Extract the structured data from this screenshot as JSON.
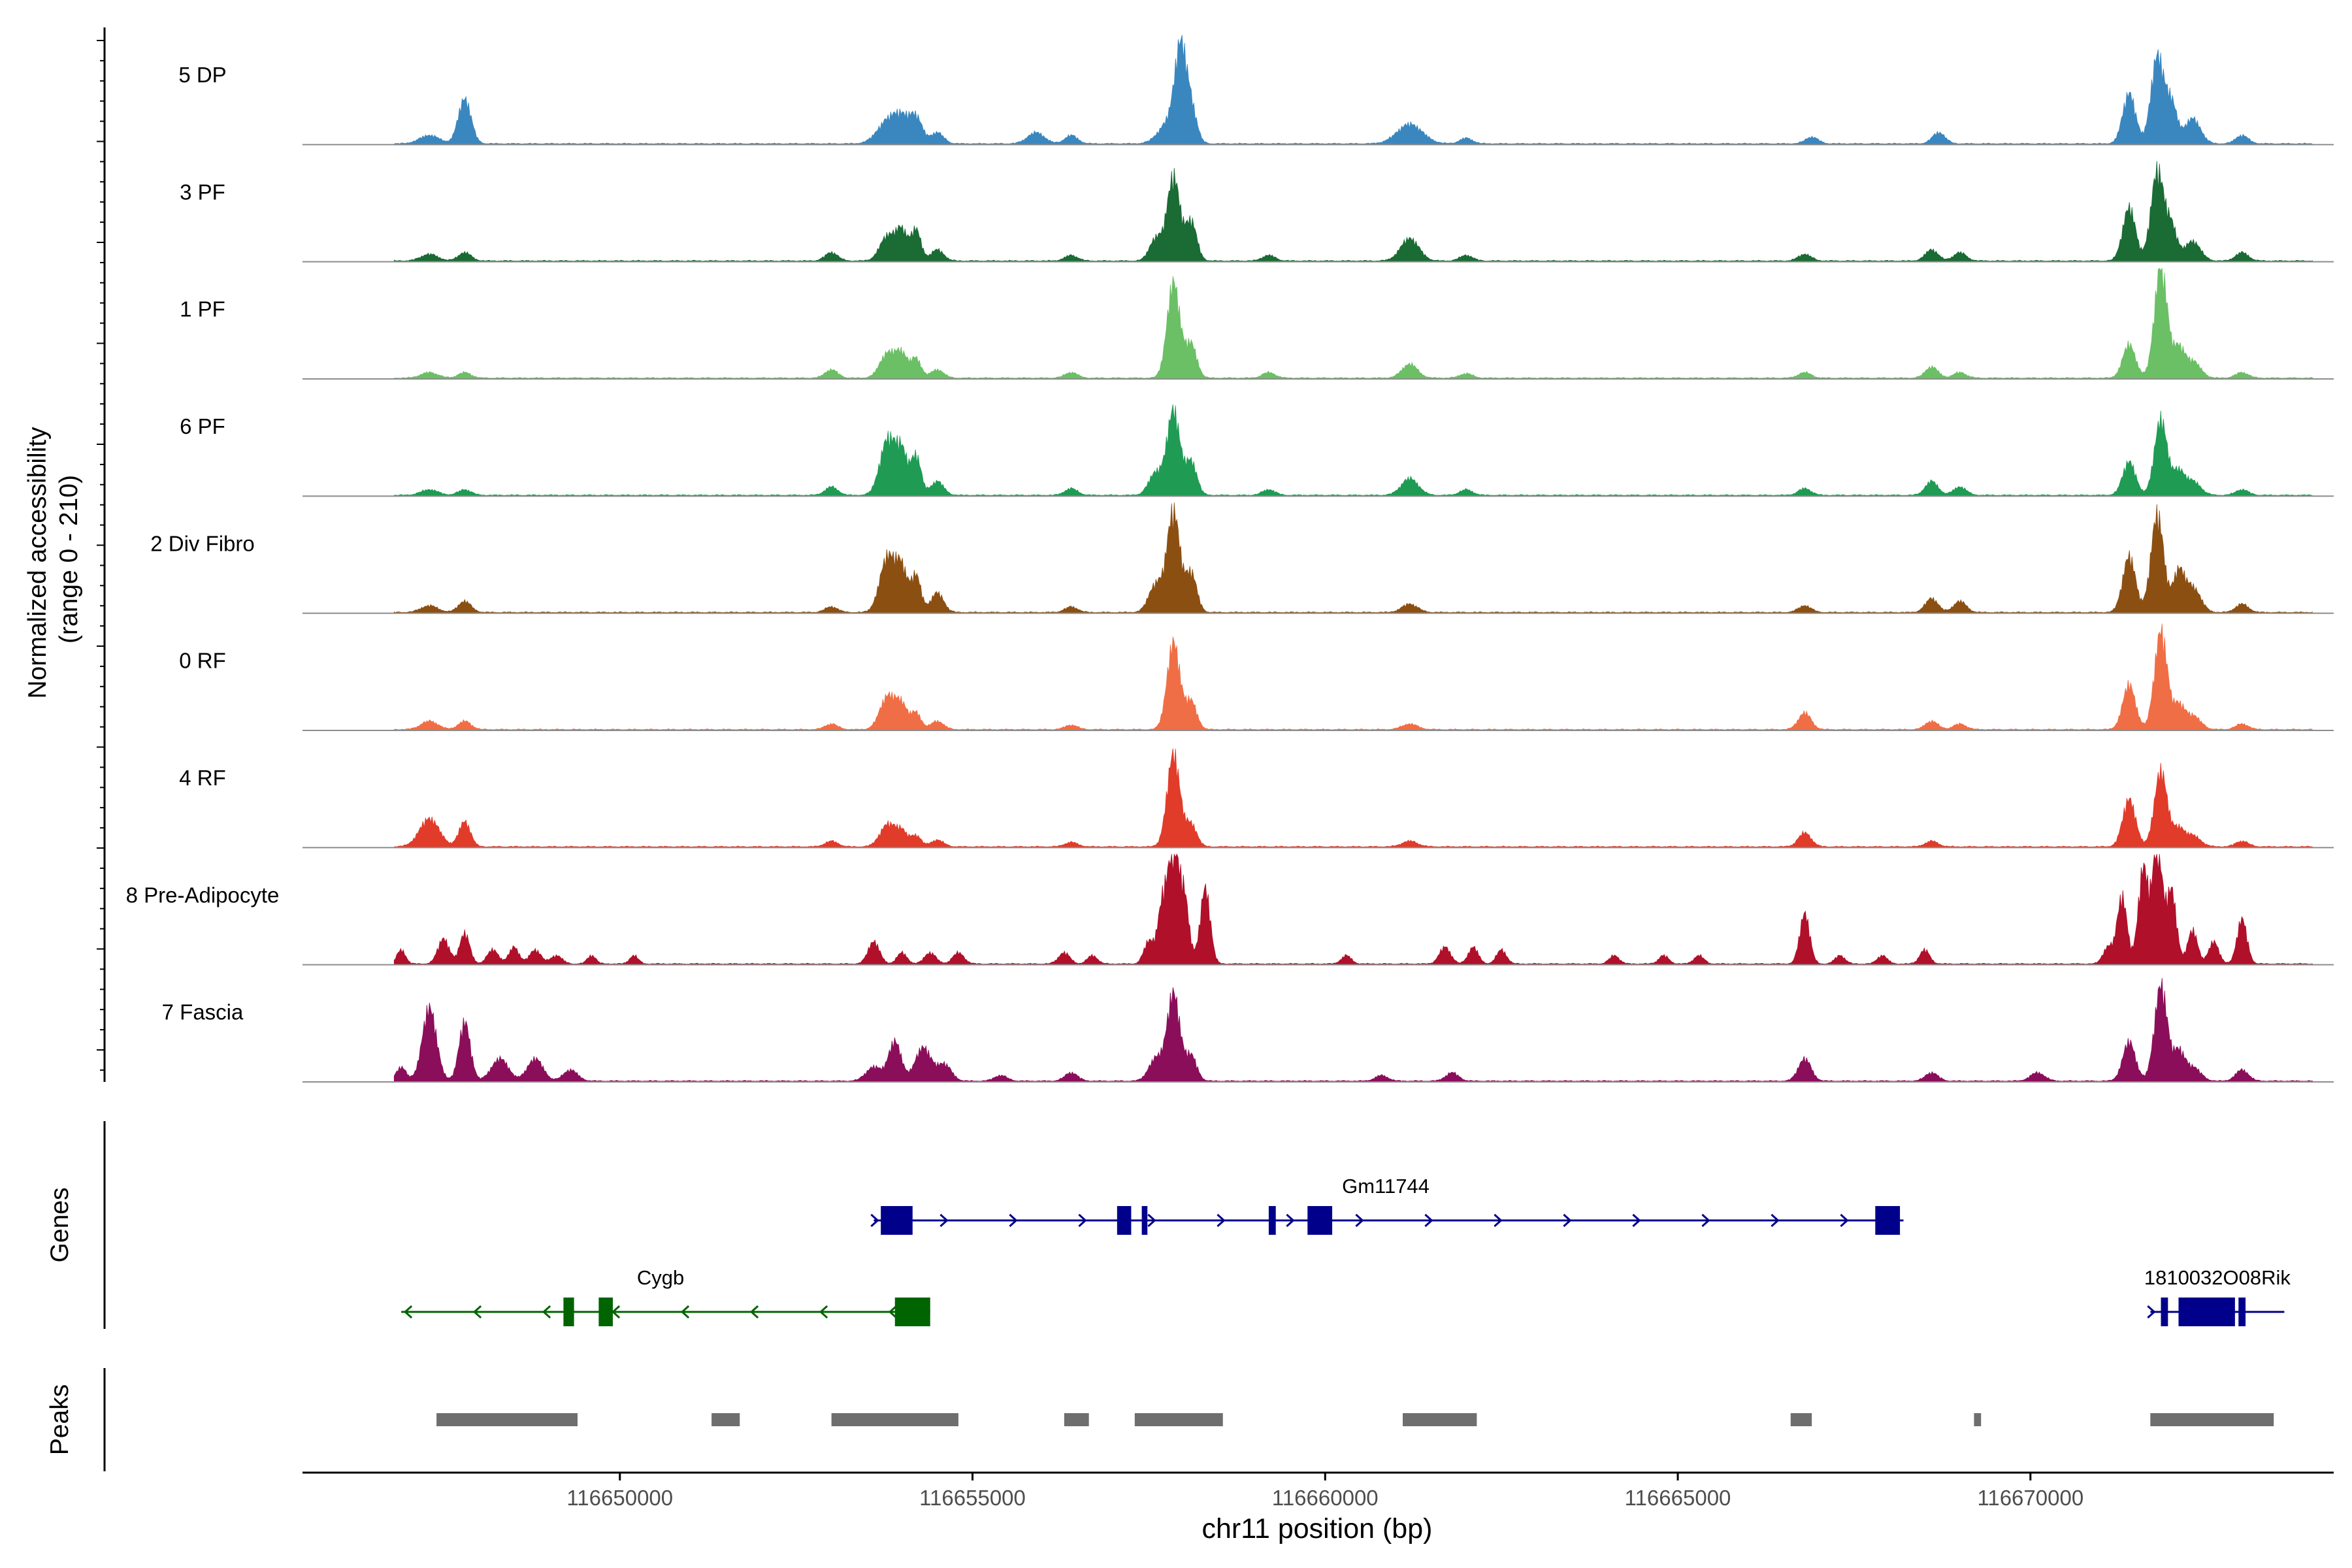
{
  "chart_data": {
    "type": "area",
    "title": "",
    "ylabel": "Normalized accessibility\n(range 0 - 210)",
    "ylabel_lines": [
      "Normalized accessibility",
      "(range 0 - 210)"
    ],
    "ylim": [
      0,
      210
    ],
    "xlabel": "chr11 position (bp)",
    "xlim": [
      116645500,
      116674300
    ],
    "x_ticks": [
      116650000,
      116655000,
      116660000,
      116665000,
      116670000
    ],
    "x_tick_labels": [
      "116650000",
      "116655000",
      "116660000",
      "116665000",
      "116670000"
    ],
    "coverage_region": [
      116646800,
      116674000
    ],
    "tracks": [
      {
        "name": "5 DP",
        "color": "#3a87c0",
        "peaks": [
          [
            116647300,
            15,
            140
          ],
          [
            116647800,
            80,
            90
          ],
          [
            116653800,
            40,
            150
          ],
          [
            116654000,
            35,
            110
          ],
          [
            116654200,
            45,
            90
          ],
          [
            116654500,
            20,
            90
          ],
          [
            116655900,
            20,
            120
          ],
          [
            116656400,
            15,
            90
          ],
          [
            116657800,
            40,
            150
          ],
          [
            116657950,
            150,
            80
          ],
          [
            116658100,
            60,
            80
          ],
          [
            116661200,
            35,
            180
          ],
          [
            116662000,
            10,
            90
          ],
          [
            116666900,
            12,
            90
          ],
          [
            116668700,
            20,
            90
          ],
          [
            116671400,
            90,
            90
          ],
          [
            116671800,
            155,
            90
          ],
          [
            116672000,
            70,
            80
          ],
          [
            116672300,
            45,
            110
          ],
          [
            116673000,
            15,
            90
          ]
        ]
      },
      {
        "name": "3 PF",
        "color": "#1a6b34",
        "peaks": [
          [
            116647300,
            12,
            120
          ],
          [
            116647800,
            15,
            90
          ],
          [
            116653000,
            15,
            90
          ],
          [
            116653800,
            45,
            110
          ],
          [
            116654000,
            50,
            80
          ],
          [
            116654200,
            55,
            70
          ],
          [
            116654500,
            20,
            90
          ],
          [
            116656400,
            10,
            90
          ],
          [
            116657600,
            40,
            90
          ],
          [
            116657850,
            150,
            90
          ],
          [
            116658100,
            70,
            80
          ],
          [
            116659200,
            10,
            90
          ],
          [
            116661200,
            40,
            130
          ],
          [
            116662000,
            10,
            90
          ],
          [
            116666800,
            12,
            90
          ],
          [
            116668600,
            20,
            90
          ],
          [
            116669000,
            15,
            90
          ],
          [
            116671400,
            95,
            90
          ],
          [
            116671800,
            160,
            90
          ],
          [
            116672000,
            60,
            80
          ],
          [
            116672300,
            35,
            110
          ],
          [
            116673000,
            15,
            90
          ]
        ]
      },
      {
        "name": "1 PF",
        "color": "#6bbf65",
        "peaks": [
          [
            116647300,
            10,
            120
          ],
          [
            116647800,
            10,
            90
          ],
          [
            116653000,
            15,
            90
          ],
          [
            116653800,
            45,
            110
          ],
          [
            116654000,
            40,
            80
          ],
          [
            116654200,
            35,
            70
          ],
          [
            116654500,
            15,
            90
          ],
          [
            116656400,
            10,
            90
          ],
          [
            116657850,
            170,
            90
          ],
          [
            116658100,
            60,
            80
          ],
          [
            116659200,
            10,
            90
          ],
          [
            116661200,
            25,
            110
          ],
          [
            116662000,
            8,
            90
          ],
          [
            116666800,
            10,
            90
          ],
          [
            116668600,
            20,
            90
          ],
          [
            116669000,
            10,
            90
          ],
          [
            116671400,
            60,
            90
          ],
          [
            116671850,
            200,
            90
          ],
          [
            116672100,
            50,
            80
          ],
          [
            116672300,
            30,
            110
          ],
          [
            116673000,
            10,
            90
          ]
        ]
      },
      {
        "name": "6 PF",
        "color": "#1f9b54",
        "peaks": [
          [
            116647300,
            10,
            120
          ],
          [
            116647800,
            10,
            90
          ],
          [
            116653000,
            15,
            90
          ],
          [
            116653800,
            100,
            110
          ],
          [
            116654000,
            70,
            80
          ],
          [
            116654200,
            70,
            70
          ],
          [
            116654500,
            25,
            90
          ],
          [
            116656400,
            12,
            90
          ],
          [
            116657600,
            40,
            100
          ],
          [
            116657850,
            150,
            90
          ],
          [
            116658100,
            60,
            80
          ],
          [
            116659200,
            10,
            90
          ],
          [
            116661200,
            30,
            120
          ],
          [
            116662000,
            10,
            90
          ],
          [
            116666800,
            12,
            90
          ],
          [
            116668600,
            25,
            90
          ],
          [
            116669000,
            15,
            90
          ],
          [
            116671400,
            60,
            90
          ],
          [
            116671850,
            135,
            90
          ],
          [
            116672100,
            40,
            80
          ],
          [
            116672300,
            25,
            110
          ],
          [
            116673000,
            10,
            90
          ]
        ]
      },
      {
        "name": "2 Div Fibro",
        "color": "#8c4f12",
        "peaks": [
          [
            116647300,
            12,
            120
          ],
          [
            116647800,
            20,
            90
          ],
          [
            116653000,
            10,
            90
          ],
          [
            116653800,
            100,
            110
          ],
          [
            116654000,
            70,
            80
          ],
          [
            116654200,
            65,
            70
          ],
          [
            116654500,
            35,
            90
          ],
          [
            116656400,
            10,
            90
          ],
          [
            116657600,
            50,
            100
          ],
          [
            116657850,
            180,
            90
          ],
          [
            116658100,
            70,
            80
          ],
          [
            116661200,
            15,
            110
          ],
          [
            116666800,
            12,
            90
          ],
          [
            116668600,
            25,
            90
          ],
          [
            116669000,
            20,
            90
          ],
          [
            116671400,
            100,
            90
          ],
          [
            116671800,
            175,
            90
          ],
          [
            116672100,
            70,
            80
          ],
          [
            116672300,
            45,
            110
          ],
          [
            116673000,
            15,
            90
          ]
        ]
      },
      {
        "name": "0 RF",
        "color": "#f06e45",
        "peaks": [
          [
            116647300,
            15,
            120
          ],
          [
            116647800,
            15,
            90
          ],
          [
            116653000,
            10,
            90
          ],
          [
            116653800,
            60,
            110
          ],
          [
            116654000,
            40,
            80
          ],
          [
            116654200,
            30,
            70
          ],
          [
            116654500,
            15,
            90
          ],
          [
            116656400,
            8,
            90
          ],
          [
            116657850,
            155,
            90
          ],
          [
            116658100,
            50,
            80
          ],
          [
            116661200,
            10,
            110
          ],
          [
            116666800,
            30,
            90
          ],
          [
            116668600,
            15,
            90
          ],
          [
            116669000,
            10,
            90
          ],
          [
            116671400,
            80,
            90
          ],
          [
            116671850,
            175,
            90
          ],
          [
            116672100,
            40,
            80
          ],
          [
            116672300,
            25,
            110
          ],
          [
            116673000,
            10,
            90
          ]
        ]
      },
      {
        "name": "4 RF",
        "color": "#e13b2a",
        "peaks": [
          [
            116647300,
            50,
            140
          ],
          [
            116647800,
            45,
            80
          ],
          [
            116653000,
            10,
            90
          ],
          [
            116653800,
            40,
            110
          ],
          [
            116654000,
            25,
            80
          ],
          [
            116654200,
            20,
            70
          ],
          [
            116654500,
            12,
            90
          ],
          [
            116656400,
            8,
            90
          ],
          [
            116657850,
            165,
            90
          ],
          [
            116658100,
            40,
            80
          ],
          [
            116661200,
            10,
            110
          ],
          [
            116666800,
            25,
            90
          ],
          [
            116668600,
            10,
            90
          ],
          [
            116671400,
            85,
            90
          ],
          [
            116671850,
            135,
            90
          ],
          [
            116672100,
            30,
            80
          ],
          [
            116672300,
            20,
            110
          ],
          [
            116673000,
            10,
            90
          ]
        ]
      },
      {
        "name": "8 Pre-Adipocyte",
        "color": "#b0102a",
        "peaks": [
          [
            116646900,
            25,
            60
          ],
          [
            116647500,
            45,
            80
          ],
          [
            116647800,
            55,
            70
          ],
          [
            116648200,
            25,
            80
          ],
          [
            116648500,
            30,
            70
          ],
          [
            116648800,
            25,
            80
          ],
          [
            116649100,
            15,
            80
          ],
          [
            116649600,
            15,
            60
          ],
          [
            116650200,
            15,
            60
          ],
          [
            116653600,
            40,
            80
          ],
          [
            116654000,
            20,
            70
          ],
          [
            116654400,
            20,
            80
          ],
          [
            116654800,
            20,
            80
          ],
          [
            116656300,
            20,
            80
          ],
          [
            116656700,
            15,
            70
          ],
          [
            116657500,
            40,
            70
          ],
          [
            116657700,
            110,
            70
          ],
          [
            116657850,
            190,
            70
          ],
          [
            116658000,
            120,
            70
          ],
          [
            116658300,
            135,
            70
          ],
          [
            116660300,
            15,
            70
          ],
          [
            116661700,
            30,
            80
          ],
          [
            116662100,
            30,
            70
          ],
          [
            116662500,
            25,
            70
          ],
          [
            116664100,
            15,
            70
          ],
          [
            116664800,
            15,
            70
          ],
          [
            116665300,
            15,
            70
          ],
          [
            116666800,
            90,
            70
          ],
          [
            116667300,
            15,
            70
          ],
          [
            116667900,
            15,
            70
          ],
          [
            116668500,
            25,
            70
          ],
          [
            116671100,
            30,
            70
          ],
          [
            116671300,
            120,
            70
          ],
          [
            116671600,
            170,
            70
          ],
          [
            116671800,
            210,
            70
          ],
          [
            116672000,
            130,
            70
          ],
          [
            116672300,
            60,
            70
          ],
          [
            116672600,
            40,
            70
          ],
          [
            116673000,
            80,
            70
          ]
        ]
      },
      {
        "name": "7 Fascia",
        "color": "#8b0e5a",
        "peaks": [
          [
            116646900,
            25,
            70
          ],
          [
            116647300,
            130,
            100
          ],
          [
            116647800,
            105,
            80
          ],
          [
            116648300,
            40,
            120
          ],
          [
            116648800,
            40,
            110
          ],
          [
            116649300,
            20,
            100
          ],
          [
            116653600,
            25,
            110
          ],
          [
            116653900,
            70,
            90
          ],
          [
            116654300,
            60,
            110
          ],
          [
            116654600,
            30,
            100
          ],
          [
            116655400,
            10,
            90
          ],
          [
            116656400,
            15,
            90
          ],
          [
            116657600,
            40,
            100
          ],
          [
            116657850,
            155,
            90
          ],
          [
            116658100,
            45,
            80
          ],
          [
            116660800,
            10,
            90
          ],
          [
            116661800,
            15,
            90
          ],
          [
            116666800,
            40,
            90
          ],
          [
            116668600,
            15,
            90
          ],
          [
            116670100,
            15,
            100
          ],
          [
            116671400,
            70,
            90
          ],
          [
            116671850,
            170,
            90
          ],
          [
            116672100,
            50,
            80
          ],
          [
            116672300,
            25,
            110
          ],
          [
            116673000,
            20,
            90
          ]
        ]
      }
    ],
    "genes": [
      {
        "name": "Gm11744",
        "color": "#00008b",
        "strand": "+",
        "row": 1,
        "start": 116653600,
        "end": 116668200,
        "exons": [
          [
            116653700,
            116654150
          ],
          [
            116657050,
            116657250
          ],
          [
            116657400,
            116657480
          ],
          [
            116659200,
            116659300
          ],
          [
            116659750,
            116660100
          ],
          [
            116667800,
            116668150
          ]
        ]
      },
      {
        "name": "Cygb",
        "color": "#006400",
        "strand": "-",
        "row": 2,
        "start": 116646900,
        "end": 116654400,
        "exons": [
          [
            116649200,
            116649350
          ],
          [
            116649700,
            116649900
          ],
          [
            116653900,
            116654400
          ]
        ]
      },
      {
        "name": "1810032O08Rik",
        "color": "#00008b",
        "strand": "+",
        "row": 2,
        "start": 116671700,
        "end": 116673600,
        "exons": [
          [
            116671850,
            116671950
          ],
          [
            116672100,
            116672900
          ],
          [
            116672950,
            116673050
          ]
        ]
      }
    ],
    "peaks_track": [
      [
        116647400,
        116649400
      ],
      [
        116651300,
        116651700
      ],
      [
        116653000,
        116654800
      ],
      [
        116656300,
        116656650
      ],
      [
        116657300,
        116658550
      ],
      [
        116661100,
        116662150
      ],
      [
        116666600,
        116666900
      ],
      [
        116669200,
        116669300
      ],
      [
        116671700,
        116673450
      ]
    ],
    "panel_labels": {
      "genes": "Genes",
      "peaks": "Peaks"
    }
  }
}
